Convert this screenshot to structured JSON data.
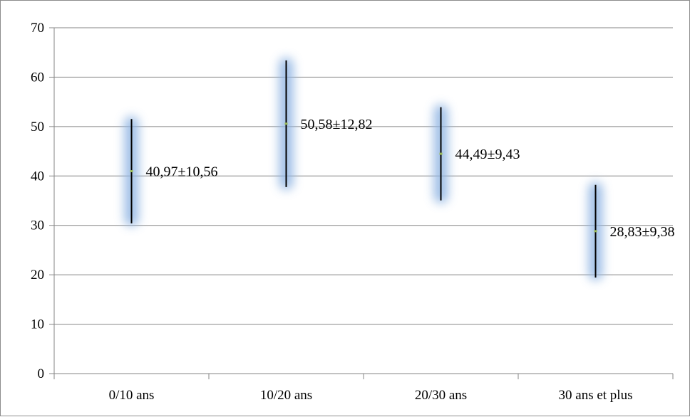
{
  "chart_data": {
    "type": "errorbar",
    "categories": [
      "0/10 ans",
      "10/20 ans",
      "20/30 ans",
      "30 ans et plus"
    ],
    "series": [
      {
        "values": [
          40.97,
          50.58,
          44.49,
          28.83
        ],
        "errors": [
          10.56,
          12.82,
          9.43,
          9.38
        ],
        "labels": [
          "40,97±10,56",
          "50,58±12,82",
          "44,49±9,43",
          "28,83±9,38"
        ]
      }
    ],
    "y_ticks": [
      "0",
      "10",
      "20",
      "30",
      "40",
      "50",
      "60",
      "70"
    ],
    "ylim": [
      0,
      70
    ],
    "grid": true,
    "legend": "none",
    "colors": {
      "error_bar": "#000000",
      "point": "#9bbb59",
      "glow": "#8db3e2",
      "gridline": "#868686"
    }
  }
}
